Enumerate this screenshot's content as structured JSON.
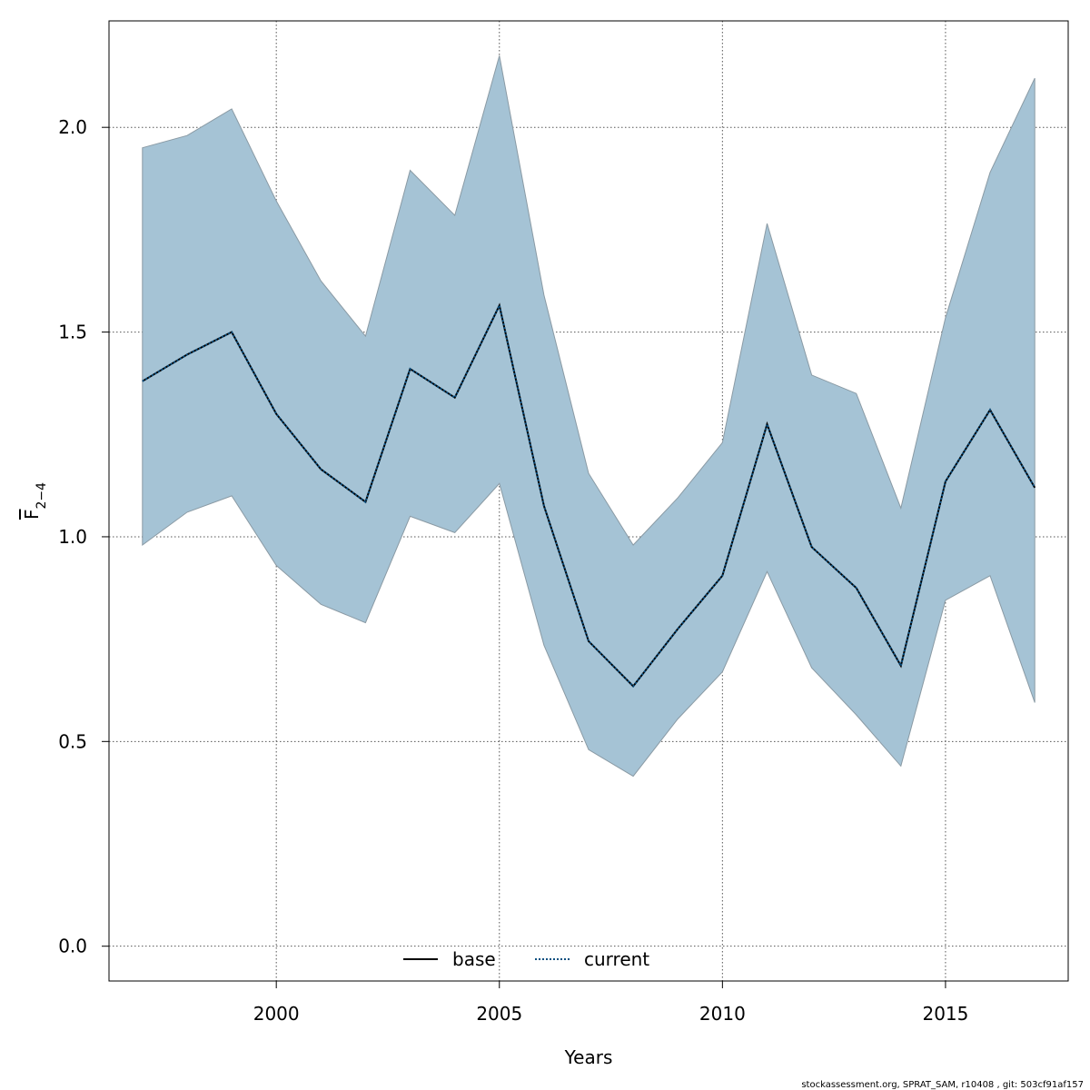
{
  "chart_data": {
    "type": "line",
    "title": "",
    "xlabel": "Years",
    "ylabel": "F̅2−4",
    "ylabel_main": "F",
    "ylabel_sub": "2−4",
    "xlim": [
      1996.25,
      2017.75
    ],
    "ylim": [
      -0.085,
      2.26
    ],
    "x_ticks": [
      2000,
      2005,
      2010,
      2015
    ],
    "x_tick_labels": [
      "2000",
      "2005",
      "2010",
      "2015"
    ],
    "y_ticks": [
      0.0,
      0.5,
      1.0,
      1.5,
      2.0
    ],
    "y_tick_labels": [
      "0.0",
      "0.5",
      "1.0",
      "1.5",
      "2.0"
    ],
    "grid": true,
    "legend_position": "bottom-center",
    "x": [
      1997,
      1998,
      1999,
      2000,
      2001,
      2002,
      2003,
      2004,
      2005,
      2006,
      2007,
      2008,
      2009,
      2010,
      2011,
      2012,
      2013,
      2014,
      2015,
      2016,
      2017
    ],
    "band": {
      "upper": [
        1.95,
        1.98,
        2.045,
        1.82,
        1.625,
        1.49,
        1.895,
        1.785,
        2.175,
        1.59,
        1.155,
        0.98,
        1.095,
        1.23,
        1.765,
        1.395,
        1.35,
        1.07,
        1.535,
        1.89,
        2.12
      ],
      "lower": [
        0.98,
        1.06,
        1.1,
        0.93,
        0.835,
        0.79,
        1.05,
        1.01,
        1.13,
        0.735,
        0.48,
        0.415,
        0.555,
        0.67,
        0.915,
        0.68,
        0.565,
        0.44,
        0.845,
        0.905,
        0.595
      ],
      "fill_color": "#a5c3d5",
      "stroke_color": "#8a9aa4"
    },
    "series": [
      {
        "name": "base",
        "values": [
          1.38,
          1.445,
          1.5,
          1.3,
          1.165,
          1.085,
          1.41,
          1.34,
          1.565,
          1.075,
          0.745,
          0.635,
          0.775,
          0.905,
          1.275,
          0.975,
          0.875,
          0.685,
          1.135,
          1.31,
          1.12
        ],
        "color": "#000000",
        "dash": "solid"
      },
      {
        "name": "current",
        "values": [
          1.38,
          1.445,
          1.5,
          1.3,
          1.165,
          1.085,
          1.41,
          1.34,
          1.565,
          1.075,
          0.745,
          0.635,
          0.775,
          0.905,
          1.275,
          0.975,
          0.875,
          0.685,
          1.135,
          1.31,
          1.12
        ],
        "color": "#0a4f80",
        "dash": "dotted"
      }
    ],
    "legend": [
      "base",
      "current"
    ]
  },
  "credit": "stockassessment.org, SPRAT_SAM, r10408 , git: 503cf91af157"
}
